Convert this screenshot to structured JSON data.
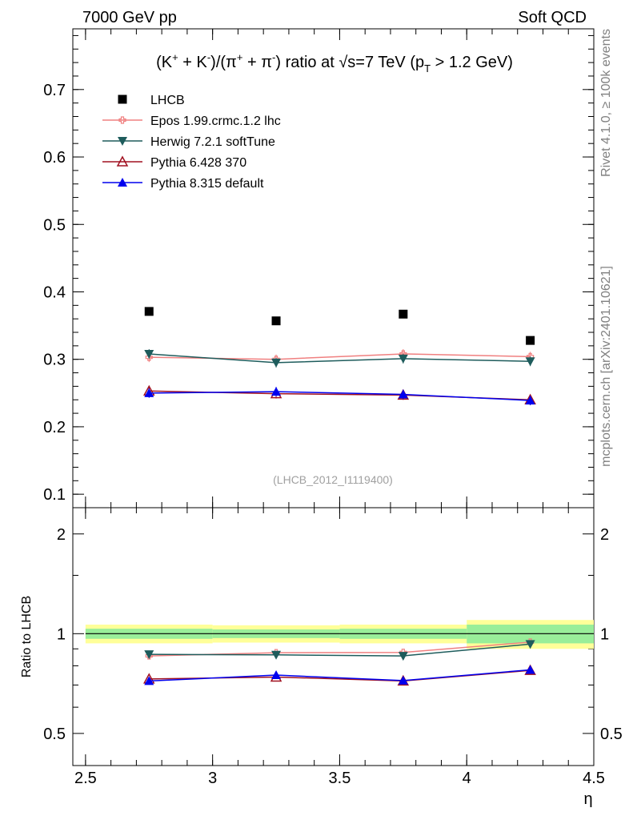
{
  "header": {
    "left": "7000 GeV pp",
    "right": "Soft QCD"
  },
  "side_texts": {
    "rivet": "Rivet 4.1.0, ≥ 100k events",
    "mcplots": "mcplots.cern.ch [arXiv:2401.10621]"
  },
  "chart_data": {
    "type": "scatter",
    "title": "(K⁺ + K⁻)/(π⁺ + π⁻) ratio at √s=7 TeV (p_T > 1.2 GeV)",
    "title_parts": {
      "a": "(K",
      "b": " + K",
      "c": ")/(π",
      "d": " + π",
      "e": ") ratio at ",
      "f": "s=7 TeV (p",
      "g": " > 1.2 GeV)",
      "plus": "+",
      "minus": "-",
      "sub_T": "T"
    },
    "analysis_label": "(LHCB_2012_I1119400)",
    "xlabel": "η",
    "ylabel_ratio": "Ratio to LHCB",
    "xlim": [
      2.45,
      4.5
    ],
    "ylim_main": [
      0.08,
      0.79
    ],
    "ylim_ratio": [
      0.4,
      2.4
    ],
    "x_ticks": [
      {
        "v": 2.5,
        "label": "2.5"
      },
      {
        "v": 3.0,
        "label": "3"
      },
      {
        "v": 3.5,
        "label": "3.5"
      },
      {
        "v": 4.0,
        "label": "4"
      },
      {
        "v": 4.5,
        "label": "4.5"
      }
    ],
    "y_ticks_main": [
      {
        "v": 0.1,
        "label": "0.1"
      },
      {
        "v": 0.2,
        "label": "0.2"
      },
      {
        "v": 0.3,
        "label": "0.3"
      },
      {
        "v": 0.4,
        "label": "0.4"
      },
      {
        "v": 0.5,
        "label": "0.5"
      },
      {
        "v": 0.6,
        "label": "0.6"
      },
      {
        "v": 0.7,
        "label": "0.7"
      }
    ],
    "y_ticks_ratio": [
      {
        "v": 0.5,
        "label": "0.5"
      },
      {
        "v": 1.0,
        "label": "1"
      },
      {
        "v": 2.0,
        "label": "2"
      }
    ],
    "x": [
      2.75,
      3.25,
      3.75,
      4.25
    ],
    "bins": [
      [
        2.5,
        3.0
      ],
      [
        3.0,
        3.5
      ],
      [
        3.5,
        4.0
      ],
      [
        4.0,
        4.5
      ]
    ],
    "data": {
      "name": "LHCB",
      "values": [
        0.371,
        0.357,
        0.367,
        0.328
      ],
      "color": "#000000"
    },
    "band_inner": [
      0.035,
      0.03,
      0.035,
      0.065
    ],
    "band_outer": [
      0.065,
      0.06,
      0.065,
      0.1
    ],
    "series": [
      {
        "name": "Epos 1.99.crmc.1.2 lhc",
        "marker": "open-cross",
        "color": "#f08080",
        "values": [
          0.303,
          0.3,
          0.308,
          0.304
        ],
        "ratio": [
          0.857,
          0.876,
          0.878,
          0.943
        ]
      },
      {
        "name": "Herwig 7.2.1 softTune",
        "marker": "down-triangle",
        "color": "#1e5c5c",
        "values": [
          0.308,
          0.295,
          0.301,
          0.297
        ],
        "ratio": [
          0.866,
          0.863,
          0.857,
          0.93
        ]
      },
      {
        "name": "Pythia 6.428 370",
        "marker": "open-triangle",
        "color": "#a01020",
        "values": [
          0.253,
          0.249,
          0.247,
          0.24
        ],
        "ratio": [
          0.73,
          0.74,
          0.72,
          0.775
        ]
      },
      {
        "name": "Pythia 8.315 default",
        "marker": "up-triangle",
        "color": "#0000ee",
        "values": [
          0.25,
          0.252,
          0.248,
          0.239
        ],
        "ratio": [
          0.72,
          0.75,
          0.722,
          0.778
        ]
      }
    ]
  }
}
